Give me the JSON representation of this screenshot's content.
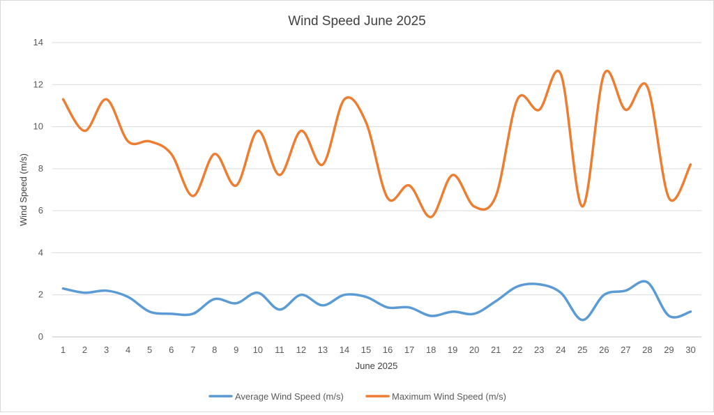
{
  "chart_data": {
    "type": "line",
    "title": "Wind Speed June 2025",
    "xlabel": "June 2025",
    "ylabel": "Wind Speed (m/s)",
    "categories": [
      "1",
      "2",
      "3",
      "4",
      "5",
      "6",
      "7",
      "8",
      "9",
      "10",
      "11",
      "12",
      "13",
      "14",
      "15",
      "16",
      "17",
      "18",
      "19",
      "20",
      "21",
      "22",
      "23",
      "24",
      "25",
      "26",
      "27",
      "28",
      "29",
      "30"
    ],
    "ylim": [
      0,
      14
    ],
    "yticks": [
      0,
      2,
      4,
      6,
      8,
      10,
      12,
      14
    ],
    "grid": true,
    "legend": "bottom",
    "series": [
      {
        "name": "Average Wind Speed (m/s)",
        "color": "#5b9bd5",
        "values": [
          2.3,
          2.1,
          2.2,
          1.9,
          1.2,
          1.1,
          1.1,
          1.8,
          1.6,
          2.1,
          1.3,
          2.0,
          1.5,
          2.0,
          1.9,
          1.4,
          1.4,
          1.0,
          1.2,
          1.1,
          1.7,
          2.4,
          2.5,
          2.1,
          0.8,
          2.0,
          2.2,
          2.6,
          1.0,
          1.2
        ]
      },
      {
        "name": "Maximum Wind Speed (m/s)",
        "color": "#ed7d31",
        "values": [
          11.3,
          9.8,
          11.3,
          9.3,
          9.3,
          8.7,
          6.7,
          8.7,
          7.2,
          9.8,
          7.7,
          9.8,
          8.2,
          11.3,
          10.2,
          6.6,
          7.2,
          5.7,
          7.7,
          6.2,
          6.7,
          11.3,
          10.8,
          12.5,
          6.2,
          12.5,
          10.8,
          11.9,
          6.6,
          8.2
        ]
      }
    ]
  }
}
